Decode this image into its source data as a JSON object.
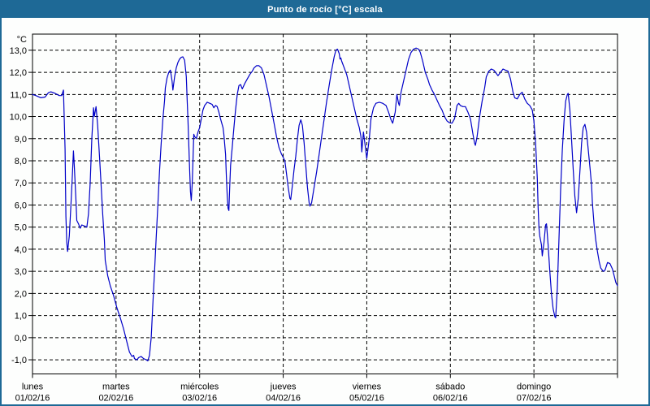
{
  "window": {
    "title": "Punto de rocío [°C] escala"
  },
  "colors": {
    "titlebar_bg": "#1e6996",
    "window_border": "#1e6996",
    "title_text": "#ffffff",
    "plot_bg": "#fdfefd",
    "axis": "#000000",
    "grid": "#000000",
    "curve": "#0000c8"
  },
  "chart_data": {
    "type": "line",
    "title": "Punto de rocío [°C] escala",
    "ylabel": "°C",
    "unit_label": "°C",
    "grid": true,
    "legend": "none",
    "ylim": [
      -1.64,
      13.73
    ],
    "xlim_days": [
      0,
      7
    ],
    "y_ticks": {
      "values": [
        13,
        12,
        11,
        10,
        9,
        8,
        7,
        6,
        5,
        4,
        3,
        2,
        1,
        0,
        -1
      ],
      "labels": [
        "13,0",
        "12,0",
        "11,0",
        "10,0",
        "9,0",
        "8,0",
        "7,0",
        "6,0",
        "5,0",
        "4,0",
        "3,0",
        "2,0",
        "1,0",
        "0,0",
        "-1,0"
      ]
    },
    "x_ticks": {
      "days": [
        {
          "name": "lunes",
          "date": "01/02/16"
        },
        {
          "name": "martes",
          "date": "02/02/16"
        },
        {
          "name": "miércoles",
          "date": "03/02/16"
        },
        {
          "name": "jueves",
          "date": "04/02/16"
        },
        {
          "name": "viernes",
          "date": "05/02/16"
        },
        {
          "name": "sábado",
          "date": "06/02/16"
        },
        {
          "name": "domingo",
          "date": "07/02/16"
        }
      ]
    },
    "series": [
      {
        "name": "Punto de rocío [°C]",
        "color": "#0000c8",
        "points": [
          [
            0.0,
            11.0
          ],
          [
            0.04,
            10.95
          ],
          [
            0.1,
            10.85
          ],
          [
            0.15,
            10.88
          ],
          [
            0.19,
            11.08
          ],
          [
            0.22,
            11.12
          ],
          [
            0.27,
            11.05
          ],
          [
            0.32,
            10.95
          ],
          [
            0.35,
            10.95
          ],
          [
            0.37,
            11.2
          ],
          [
            0.39,
            8.5
          ],
          [
            0.4,
            5.5
          ],
          [
            0.41,
            4.3
          ],
          [
            0.42,
            3.9
          ],
          [
            0.44,
            4.6
          ],
          [
            0.46,
            6.0
          ],
          [
            0.48,
            7.6
          ],
          [
            0.49,
            8.45
          ],
          [
            0.5,
            7.8
          ],
          [
            0.52,
            6.2
          ],
          [
            0.53,
            5.3
          ],
          [
            0.55,
            5.15
          ],
          [
            0.57,
            4.95
          ],
          [
            0.59,
            5.1
          ],
          [
            0.62,
            5.05
          ],
          [
            0.65,
            5.0
          ],
          [
            0.67,
            5.6
          ],
          [
            0.69,
            7.0
          ],
          [
            0.71,
            9.0
          ],
          [
            0.73,
            10.4
          ],
          [
            0.74,
            10.0
          ],
          [
            0.76,
            10.45
          ],
          [
            0.78,
            9.6
          ],
          [
            0.8,
            8.3
          ],
          [
            0.82,
            7.0
          ],
          [
            0.84,
            5.6
          ],
          [
            0.86,
            4.4
          ],
          [
            0.87,
            3.5
          ],
          [
            0.9,
            2.8
          ],
          [
            0.93,
            2.35
          ],
          [
            0.97,
            1.9
          ],
          [
            1.01,
            1.35
          ],
          [
            1.05,
            0.9
          ],
          [
            1.09,
            0.4
          ],
          [
            1.13,
            -0.2
          ],
          [
            1.16,
            -0.65
          ],
          [
            1.19,
            -0.85
          ],
          [
            1.21,
            -0.8
          ],
          [
            1.22,
            -0.95
          ],
          [
            1.25,
            -1.0
          ],
          [
            1.27,
            -0.9
          ],
          [
            1.3,
            -0.85
          ],
          [
            1.33,
            -0.95
          ],
          [
            1.36,
            -1.0
          ],
          [
            1.38,
            -1.05
          ],
          [
            1.4,
            -0.8
          ],
          [
            1.42,
            0.0
          ],
          [
            1.44,
            1.5
          ],
          [
            1.46,
            3.0
          ],
          [
            1.48,
            4.5
          ],
          [
            1.5,
            6.0
          ],
          [
            1.52,
            7.5
          ],
          [
            1.54,
            8.8
          ],
          [
            1.56,
            9.9
          ],
          [
            1.58,
            10.7
          ],
          [
            1.59,
            11.3
          ],
          [
            1.61,
            11.75
          ],
          [
            1.63,
            12.0
          ],
          [
            1.65,
            12.1
          ],
          [
            1.67,
            11.6
          ],
          [
            1.68,
            11.2
          ],
          [
            1.7,
            11.8
          ],
          [
            1.72,
            12.2
          ],
          [
            1.74,
            12.45
          ],
          [
            1.76,
            12.6
          ],
          [
            1.78,
            12.68
          ],
          [
            1.8,
            12.7
          ],
          [
            1.82,
            12.55
          ],
          [
            1.84,
            11.8
          ],
          [
            1.85,
            10.8
          ],
          [
            1.86,
            9.9
          ],
          [
            1.87,
            8.8
          ],
          [
            1.88,
            7.6
          ],
          [
            1.89,
            6.6
          ],
          [
            1.9,
            6.2
          ],
          [
            1.91,
            6.9
          ],
          [
            1.92,
            8.0
          ],
          [
            1.93,
            9.2
          ],
          [
            1.94,
            9.1
          ],
          [
            1.96,
            9.0
          ],
          [
            1.98,
            9.3
          ],
          [
            2.0,
            9.5
          ],
          [
            2.02,
            9.9
          ],
          [
            2.04,
            10.3
          ],
          [
            2.06,
            10.5
          ],
          [
            2.09,
            10.65
          ],
          [
            2.12,
            10.6
          ],
          [
            2.15,
            10.55
          ],
          [
            2.17,
            10.4
          ],
          [
            2.19,
            10.5
          ],
          [
            2.21,
            10.45
          ],
          [
            2.23,
            10.2
          ],
          [
            2.25,
            9.9
          ],
          [
            2.28,
            9.5
          ],
          [
            2.29,
            9.2
          ],
          [
            2.31,
            8.3
          ],
          [
            2.32,
            7.3
          ],
          [
            2.33,
            6.4
          ],
          [
            2.34,
            5.85
          ],
          [
            2.35,
            5.75
          ],
          [
            2.36,
            6.8
          ],
          [
            2.37,
            7.8
          ],
          [
            2.39,
            8.6
          ],
          [
            2.41,
            9.5
          ],
          [
            2.43,
            10.3
          ],
          [
            2.45,
            11.0
          ],
          [
            2.47,
            11.4
          ],
          [
            2.49,
            11.45
          ],
          [
            2.51,
            11.25
          ],
          [
            2.54,
            11.5
          ],
          [
            2.57,
            11.7
          ],
          [
            2.6,
            11.9
          ],
          [
            2.63,
            12.05
          ],
          [
            2.65,
            12.2
          ],
          [
            2.68,
            12.3
          ],
          [
            2.71,
            12.3
          ],
          [
            2.74,
            12.2
          ],
          [
            2.77,
            11.9
          ],
          [
            2.8,
            11.4
          ],
          [
            2.83,
            10.9
          ],
          [
            2.86,
            10.3
          ],
          [
            2.89,
            9.7
          ],
          [
            2.92,
            9.1
          ],
          [
            2.95,
            8.6
          ],
          [
            2.98,
            8.3
          ],
          [
            3.0,
            8.15
          ],
          [
            3.02,
            8.0
          ],
          [
            3.04,
            7.4
          ],
          [
            3.06,
            6.8
          ],
          [
            3.08,
            6.3
          ],
          [
            3.09,
            6.25
          ],
          [
            3.11,
            6.9
          ],
          [
            3.13,
            7.6
          ],
          [
            3.15,
            8.2
          ],
          [
            3.17,
            9.0
          ],
          [
            3.19,
            9.6
          ],
          [
            3.21,
            9.85
          ],
          [
            3.23,
            9.6
          ],
          [
            3.25,
            8.8
          ],
          [
            3.27,
            7.8
          ],
          [
            3.29,
            6.8
          ],
          [
            3.31,
            6.1
          ],
          [
            3.32,
            5.95
          ],
          [
            3.34,
            6.1
          ],
          [
            3.37,
            6.8
          ],
          [
            3.4,
            7.5
          ],
          [
            3.43,
            8.3
          ],
          [
            3.46,
            9.1
          ],
          [
            3.49,
            9.9
          ],
          [
            3.52,
            10.7
          ],
          [
            3.55,
            11.4
          ],
          [
            3.58,
            12.1
          ],
          [
            3.61,
            12.7
          ],
          [
            3.63,
            13.0
          ],
          [
            3.65,
            13.05
          ],
          [
            3.67,
            12.85
          ],
          [
            3.68,
            12.6
          ],
          [
            3.69,
            12.65
          ],
          [
            3.7,
            12.5
          ],
          [
            3.73,
            12.2
          ],
          [
            3.76,
            11.9
          ],
          [
            3.79,
            11.4
          ],
          [
            3.82,
            10.9
          ],
          [
            3.85,
            10.4
          ],
          [
            3.88,
            9.9
          ],
          [
            3.91,
            9.5
          ],
          [
            3.93,
            9.1
          ],
          [
            3.94,
            8.4
          ],
          [
            3.96,
            9.3
          ],
          [
            3.98,
            8.7
          ],
          [
            4.0,
            8.1
          ],
          [
            4.03,
            9.0
          ],
          [
            4.05,
            9.9
          ],
          [
            4.08,
            10.4
          ],
          [
            4.11,
            10.6
          ],
          [
            4.15,
            10.65
          ],
          [
            4.19,
            10.6
          ],
          [
            4.23,
            10.5
          ],
          [
            4.26,
            10.2
          ],
          [
            4.29,
            9.85
          ],
          [
            4.31,
            9.7
          ],
          [
            4.34,
            10.2
          ],
          [
            4.36,
            11.0
          ],
          [
            4.38,
            10.6
          ],
          [
            4.39,
            10.5
          ],
          [
            4.41,
            11.1
          ],
          [
            4.44,
            11.6
          ],
          [
            4.47,
            12.1
          ],
          [
            4.5,
            12.6
          ],
          [
            4.53,
            12.9
          ],
          [
            4.56,
            13.05
          ],
          [
            4.59,
            13.1
          ],
          [
            4.62,
            13.05
          ],
          [
            4.64,
            12.9
          ],
          [
            4.67,
            12.5
          ],
          [
            4.7,
            12.0
          ],
          [
            4.73,
            11.7
          ],
          [
            4.75,
            11.45
          ],
          [
            4.78,
            11.2
          ],
          [
            4.81,
            11.0
          ],
          [
            4.84,
            10.75
          ],
          [
            4.87,
            10.5
          ],
          [
            4.9,
            10.3
          ],
          [
            4.93,
            10.0
          ],
          [
            4.96,
            9.8
          ],
          [
            4.99,
            9.72
          ],
          [
            5.02,
            9.7
          ],
          [
            5.05,
            9.9
          ],
          [
            5.08,
            10.5
          ],
          [
            5.1,
            10.6
          ],
          [
            5.12,
            10.5
          ],
          [
            5.15,
            10.45
          ],
          [
            5.18,
            10.45
          ],
          [
            5.21,
            10.2
          ],
          [
            5.24,
            9.9
          ],
          [
            5.27,
            9.2
          ],
          [
            5.29,
            8.8
          ],
          [
            5.3,
            8.7
          ],
          [
            5.32,
            9.1
          ],
          [
            5.35,
            10.0
          ],
          [
            5.38,
            10.7
          ],
          [
            5.41,
            11.3
          ],
          [
            5.43,
            11.8
          ],
          [
            5.46,
            12.05
          ],
          [
            5.49,
            12.15
          ],
          [
            5.52,
            12.1
          ],
          [
            5.55,
            11.95
          ],
          [
            5.57,
            11.85
          ],
          [
            5.6,
            12.0
          ],
          [
            5.63,
            12.15
          ],
          [
            5.66,
            12.1
          ],
          [
            5.69,
            12.05
          ],
          [
            5.72,
            11.7
          ],
          [
            5.75,
            11.1
          ],
          [
            5.77,
            10.85
          ],
          [
            5.8,
            10.8
          ],
          [
            5.83,
            11.0
          ],
          [
            5.86,
            11.1
          ],
          [
            5.89,
            10.8
          ],
          [
            5.92,
            10.6
          ],
          [
            5.95,
            10.5
          ],
          [
            5.98,
            10.3
          ],
          [
            6.0,
            9.8
          ],
          [
            6.02,
            8.8
          ],
          [
            6.04,
            7.2
          ],
          [
            6.05,
            5.9
          ],
          [
            6.06,
            5.0
          ],
          [
            6.07,
            4.6
          ],
          [
            6.09,
            4.2
          ],
          [
            6.1,
            3.7
          ],
          [
            6.12,
            4.3
          ],
          [
            6.14,
            5.1
          ],
          [
            6.15,
            5.15
          ],
          [
            6.17,
            4.2
          ],
          [
            6.19,
            3.0
          ],
          [
            6.21,
            2.0
          ],
          [
            6.23,
            1.3
          ],
          [
            6.25,
            0.95
          ],
          [
            6.26,
            0.9
          ],
          [
            6.28,
            2.2
          ],
          [
            6.3,
            4.5
          ],
          [
            6.32,
            6.8
          ],
          [
            6.34,
            8.5
          ],
          [
            6.36,
            9.8
          ],
          [
            6.38,
            10.7
          ],
          [
            6.4,
            11.0
          ],
          [
            6.41,
            11.05
          ],
          [
            6.43,
            10.3
          ],
          [
            6.45,
            9.0
          ],
          [
            6.47,
            7.6
          ],
          [
            6.49,
            6.4
          ],
          [
            6.51,
            5.65
          ],
          [
            6.53,
            6.3
          ],
          [
            6.55,
            7.5
          ],
          [
            6.57,
            8.8
          ],
          [
            6.59,
            9.5
          ],
          [
            6.61,
            9.65
          ],
          [
            6.63,
            9.3
          ],
          [
            6.65,
            8.5
          ],
          [
            6.67,
            7.7
          ],
          [
            6.69,
            6.9
          ],
          [
            6.7,
            6.1
          ],
          [
            6.72,
            5.1
          ],
          [
            6.74,
            4.4
          ],
          [
            6.76,
            3.9
          ],
          [
            6.78,
            3.45
          ],
          [
            6.8,
            3.15
          ],
          [
            6.83,
            3.0
          ],
          [
            6.85,
            3.05
          ],
          [
            6.88,
            3.4
          ],
          [
            6.91,
            3.35
          ],
          [
            6.94,
            3.1
          ],
          [
            6.96,
            2.8
          ],
          [
            6.98,
            2.5
          ],
          [
            7.0,
            2.35
          ]
        ]
      }
    ]
  }
}
